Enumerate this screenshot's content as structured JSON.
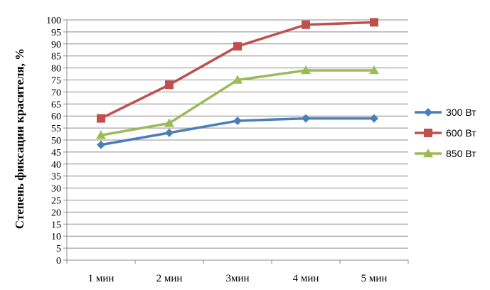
{
  "chart_data": {
    "type": "line",
    "categories": [
      "1 мин",
      "2 мин",
      "3мин",
      "4 мин",
      "5 мин"
    ],
    "ylabel": "Степень фиксации красителя, %",
    "xlabel": "",
    "ylim": [
      0,
      100
    ],
    "y_ticks": [
      "0",
      "5",
      "10",
      "15",
      "20",
      "25",
      "30",
      "35",
      "40",
      "45",
      "50",
      "55",
      "60",
      "65",
      "70",
      "75",
      "80",
      "85",
      "90",
      "95",
      "100"
    ],
    "grid": true,
    "legend_position": "right",
    "series": [
      {
        "name": "300 Вт",
        "values": [
          48,
          53,
          58,
          59,
          59
        ],
        "color": "#4A7EBB",
        "marker": "diamond"
      },
      {
        "name": "600 Вт",
        "values": [
          59,
          73,
          89,
          98,
          99
        ],
        "color": "#C0504D",
        "marker": "square"
      },
      {
        "name": "850 Вт",
        "values": [
          52,
          57,
          75,
          79,
          79
        ],
        "color": "#9BBB59",
        "marker": "triangle"
      }
    ]
  }
}
